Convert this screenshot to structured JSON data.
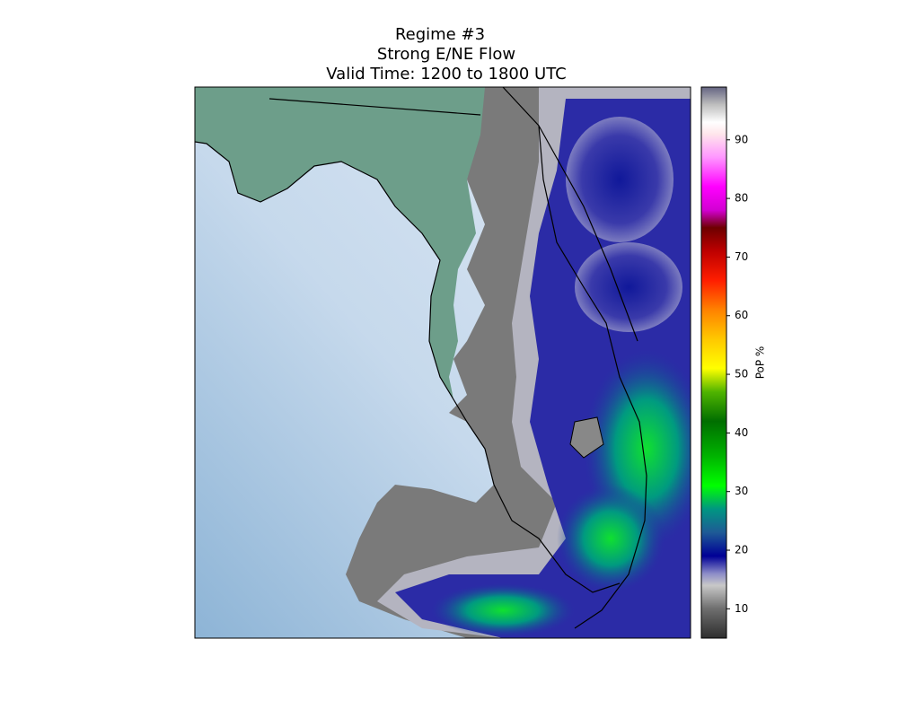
{
  "title_lines": [
    "Regime #3",
    "Strong E/NE Flow",
    "Valid Time: 1200 to 1800 UTC"
  ],
  "colorbar": {
    "label": "PoP %",
    "lim": [
      5,
      99
    ],
    "ticks": [
      10,
      20,
      30,
      40,
      50,
      60,
      70,
      80,
      90
    ],
    "colors": [
      {
        "value": 5,
        "color": "#2e2e2e"
      },
      {
        "value": 10,
        "color": "#6e6e6e"
      },
      {
        "value": 14,
        "color": "#c8c8c8"
      },
      {
        "value": 16,
        "color": "#8c8cc8"
      },
      {
        "value": 19,
        "color": "#000096"
      },
      {
        "value": 23,
        "color": "#1e5a96"
      },
      {
        "value": 27,
        "color": "#009682"
      },
      {
        "value": 31,
        "color": "#00ff00"
      },
      {
        "value": 36,
        "color": "#00b400"
      },
      {
        "value": 42,
        "color": "#006e00"
      },
      {
        "value": 47,
        "color": "#50b400"
      },
      {
        "value": 51,
        "color": "#ffff00"
      },
      {
        "value": 56,
        "color": "#ffc800"
      },
      {
        "value": 61,
        "color": "#ff8200"
      },
      {
        "value": 66,
        "color": "#ff1e00"
      },
      {
        "value": 71,
        "color": "#be0000"
      },
      {
        "value": 75,
        "color": "#6e0000"
      },
      {
        "value": 78,
        "color": "#d200d2"
      },
      {
        "value": 82,
        "color": "#ff00ff"
      },
      {
        "value": 87,
        "color": "#ff96ff"
      },
      {
        "value": 91,
        "color": "#ffe6eb"
      },
      {
        "value": 93,
        "color": "#ffffff"
      },
      {
        "value": 96,
        "color": "#bebebe"
      },
      {
        "value": 99,
        "color": "#646482"
      }
    ]
  }
}
